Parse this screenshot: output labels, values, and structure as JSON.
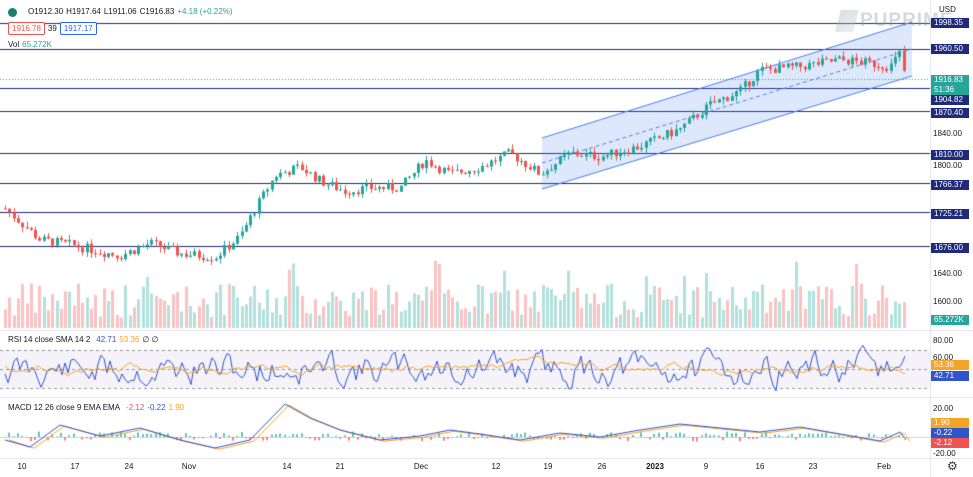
{
  "legend": {
    "open": "O1912.30",
    "high": "H1917.64",
    "low": "L1911.06",
    "close": "C1916.83",
    "change": "+4.18 (+0.22%)",
    "bid": "1916.78",
    "spread": "39",
    "ask": "1917.17",
    "vol_label": "Vol",
    "vol_value": "65.272K"
  },
  "rsi_legend": {
    "label": "RSI 14 close SMA 14 2",
    "v1": "42.71",
    "v2": "53.36",
    "extra": "∅ ∅"
  },
  "macd_legend": {
    "label": "MACD 12 26 close 9 EMA EMA",
    "v1": "-2.12",
    "v2": "-0.22",
    "v3": "1.90"
  },
  "watermark": "PUPRIME",
  "currency": "USD",
  "colors": {
    "up": "#26a69a",
    "down": "#ef5350",
    "level": "#1f2a7a",
    "channel": "#4a7df0",
    "rsi": "#2f55c9",
    "signal": "#f3a42b"
  },
  "price_scale": {
    "ticks": [
      "1840.00",
      "1800.00",
      "1640.00",
      "1600.00"
    ],
    "levels": [
      "1998.35",
      "1960.50",
      "1904.82",
      "1870.40",
      "1810.00",
      "1766.37",
      "1725.21",
      "1676.00"
    ],
    "current_price": "1916.83",
    "countdown": "51:36",
    "vol_tag": "65.272K"
  },
  "rsi_scale": {
    "ticks": [
      "80.00",
      "60.00"
    ],
    "tag1": "53.36",
    "tag2": "42.71"
  },
  "macd_scale": {
    "ticks": [
      "20.00",
      "-20.00"
    ],
    "tag1": "1.90",
    "tag2": "-0.22",
    "tag3": "-2.12"
  },
  "time_axis": [
    "10",
    "17",
    "24",
    "Nov",
    "14",
    "21",
    "Dec",
    "12",
    "19",
    "26",
    "2023",
    "9",
    "16",
    "23",
    "Feb"
  ],
  "icons": [
    "eye-icon",
    "settings-gear-icon"
  ]
}
